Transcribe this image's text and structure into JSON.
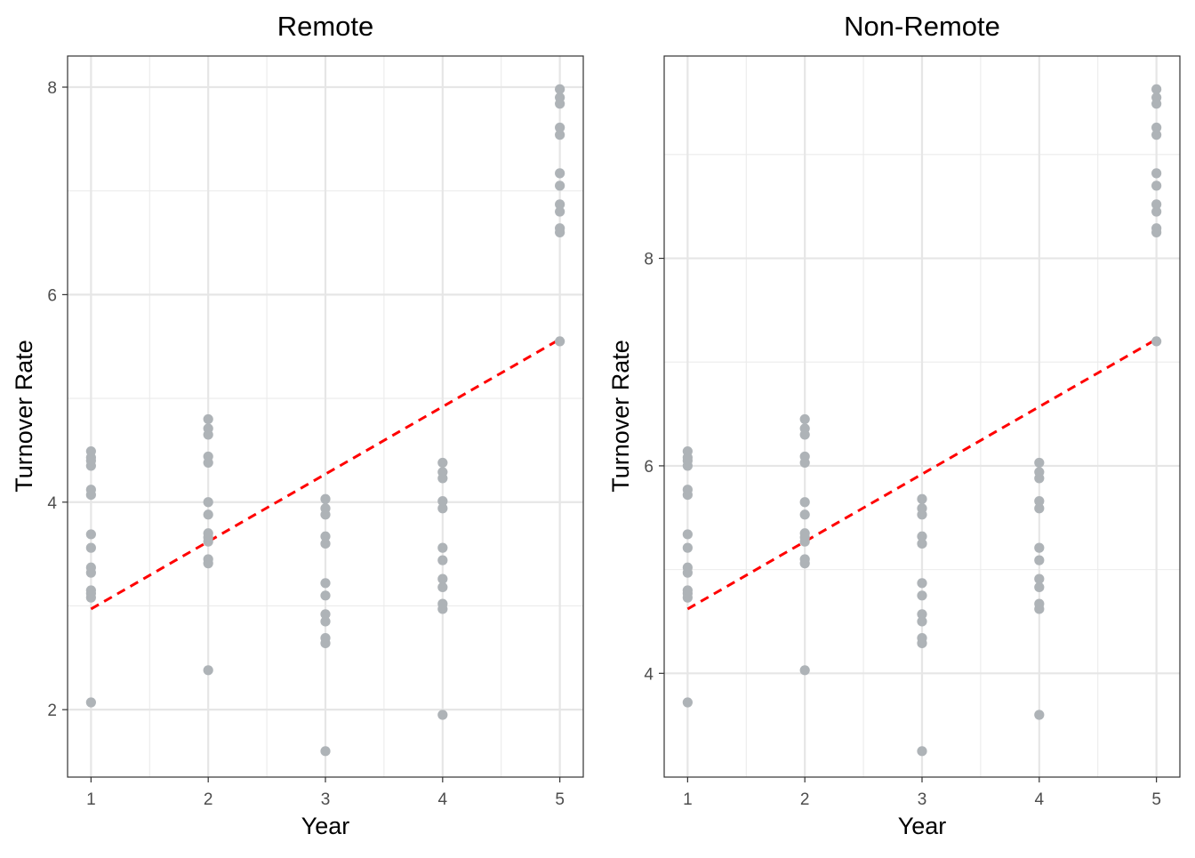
{
  "chart_data": [
    {
      "type": "scatter",
      "title": "Remote",
      "xlabel": "Year",
      "ylabel": "Turnover Rate",
      "xlim": [
        0.8,
        5.2
      ],
      "ylim": [
        1.35,
        8.3
      ],
      "x_ticks": [
        1,
        2,
        3,
        4,
        5
      ],
      "y_ticks": [
        2,
        4,
        6,
        8
      ],
      "grid": true,
      "point_color": "#aeb3b7",
      "trend_color": "#ff0000",
      "points": {
        "1": [
          2.07,
          3.08,
          3.12,
          3.15,
          3.32,
          3.37,
          3.56,
          3.69,
          4.07,
          4.12,
          4.35,
          4.4,
          4.43,
          4.49
        ],
        "2": [
          2.38,
          3.41,
          3.45,
          3.62,
          3.66,
          3.7,
          3.88,
          4.0,
          4.38,
          4.44,
          4.65,
          4.71,
          4.8
        ],
        "3": [
          1.6,
          2.64,
          2.69,
          2.85,
          2.92,
          3.1,
          3.22,
          3.6,
          3.67,
          3.88,
          3.94,
          4.03
        ],
        "4": [
          1.95,
          2.97,
          3.02,
          3.18,
          3.26,
          3.44,
          3.56,
          3.94,
          4.01,
          4.23,
          4.29,
          4.38
        ],
        "5": [
          5.55,
          6.6,
          6.64,
          6.8,
          6.87,
          7.05,
          7.17,
          7.54,
          7.61,
          7.84,
          7.9,
          7.98
        ]
      },
      "trend_line": {
        "x": [
          1,
          5
        ],
        "y": [
          2.97,
          5.57
        ]
      }
    },
    {
      "type": "scatter",
      "title": "Non-Remote",
      "xlabel": "Year",
      "ylabel": "Turnover Rate",
      "xlim": [
        0.8,
        5.2
      ],
      "ylim": [
        3.0,
        9.95
      ],
      "x_ticks": [
        1,
        2,
        3,
        4,
        5
      ],
      "y_ticks": [
        4,
        6,
        8
      ],
      "grid": true,
      "point_color": "#aeb3b7",
      "trend_color": "#ff0000",
      "points": {
        "1": [
          3.72,
          4.73,
          4.77,
          4.8,
          4.97,
          5.02,
          5.21,
          5.34,
          5.72,
          5.77,
          6.0,
          6.05,
          6.08,
          6.14
        ],
        "2": [
          4.03,
          5.06,
          5.1,
          5.27,
          5.31,
          5.35,
          5.53,
          5.65,
          6.03,
          6.09,
          6.3,
          6.36,
          6.45
        ],
        "3": [
          3.25,
          4.29,
          4.34,
          4.5,
          4.57,
          4.75,
          4.87,
          5.25,
          5.32,
          5.53,
          5.59,
          5.68
        ],
        "4": [
          3.6,
          4.62,
          4.67,
          4.83,
          4.91,
          5.09,
          5.21,
          5.59,
          5.66,
          5.88,
          5.94,
          6.03
        ],
        "5": [
          7.2,
          8.25,
          8.29,
          8.45,
          8.52,
          8.7,
          8.82,
          9.19,
          9.26,
          9.49,
          9.55,
          9.63
        ]
      },
      "trend_line": {
        "x": [
          1,
          5
        ],
        "y": [
          4.62,
          7.22
        ]
      }
    }
  ]
}
